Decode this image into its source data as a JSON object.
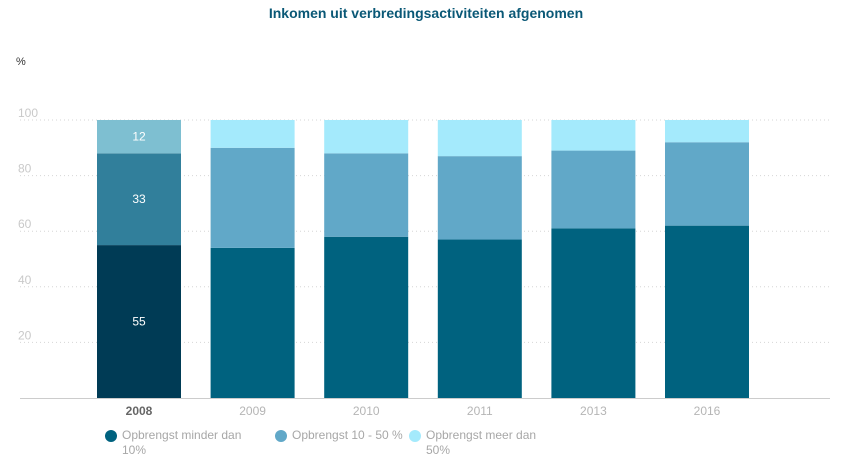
{
  "chart_data": {
    "type": "bar",
    "stacked": true,
    "title": "Inkomen uit verbredingsactiviteiten afgenomen",
    "ylabel": "%",
    "ylim": [
      0,
      100
    ],
    "yticks": [
      20,
      40,
      60,
      80,
      100
    ],
    "categories": [
      "2008",
      "2009",
      "2010",
      "2011",
      "2013",
      "2016"
    ],
    "highlight_category": "2008",
    "series": [
      {
        "name": "Opbrengst minder dan 10%",
        "color": "#00627f",
        "highlight_color": "#003b55",
        "values": [
          55,
          54,
          58,
          57,
          61,
          62
        ]
      },
      {
        "name": "Opbrengst 10 - 50 %",
        "color": "#61a8c8",
        "highlight_color": "#317f9b",
        "values": [
          33,
          36,
          30,
          30,
          28,
          30
        ]
      },
      {
        "name": "Opbrengst meer dan 50%",
        "color": "#a4eafc",
        "highlight_color": "#7ebfd1",
        "values": [
          12,
          10,
          12,
          13,
          11,
          8
        ]
      }
    ],
    "data_labels": {
      "2008": [
        "55",
        "33",
        "12"
      ]
    }
  },
  "legend": {
    "items": [
      {
        "label": "Opbrengst minder dan 10%",
        "color": "#00627f"
      },
      {
        "label": "Opbrengst 10 - 50 %",
        "color": "#61a8c8"
      },
      {
        "label": "Opbrengst meer dan 50%",
        "color": "#a4eafc"
      }
    ]
  }
}
